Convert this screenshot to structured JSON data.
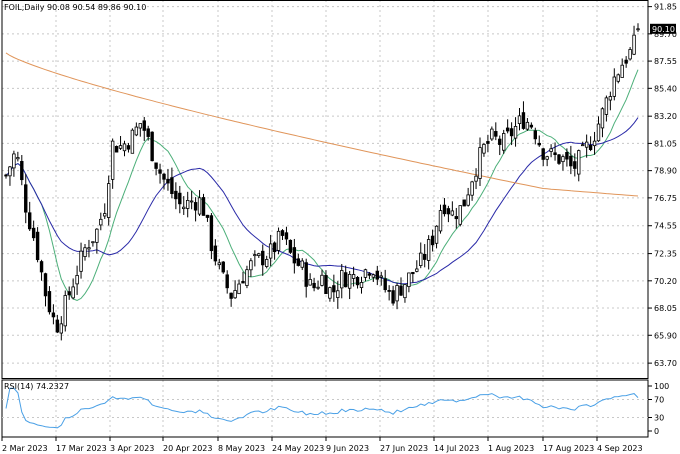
{
  "chart_data": {
    "type": "candlestick",
    "title": "FOIL,Daily  90.08 90.54 89.86 90.10",
    "symbol": "FOIL",
    "timeframe": "Daily",
    "last_bar": {
      "open": 90.08,
      "high": 90.54,
      "low": 89.86,
      "close": 90.1
    },
    "last_price_label": "90.10",
    "ylim": [
      63.0,
      91.9
    ],
    "y_ticks": [
      "91.85",
      "89.70",
      "87.55",
      "85.40",
      "83.20",
      "81.05",
      "78.90",
      "76.75",
      "74.55",
      "72.35",
      "70.20",
      "68.05",
      "65.90",
      "63.70"
    ],
    "x_ticks": [
      "2 Mar 2023",
      "17 Mar 2023",
      "3 Apr 2023",
      "20 Apr 2023",
      "8 May 2023",
      "24 May 2023",
      "9 Jun 2023",
      "27 Jun 2023",
      "14 Jul 2023",
      "1 Aug 2023",
      "17 Aug 2023",
      "4 Sep 2023"
    ],
    "grid": true,
    "colors": {
      "candle": "#000000",
      "ma_fast": "#4caf79",
      "ma_mid": "#2a2aa8",
      "ma_slow": "#e0955a",
      "rsi": "#4aa0e6",
      "grid": "#c8c8c8"
    },
    "rsi": {
      "label": "RSI(14) 74.2327",
      "period": 14,
      "value": 74.2327,
      "ylim": [
        0,
        100
      ],
      "levels": [
        30,
        70
      ],
      "ticks": [
        "100",
        "70",
        "30",
        "0"
      ]
    }
  }
}
